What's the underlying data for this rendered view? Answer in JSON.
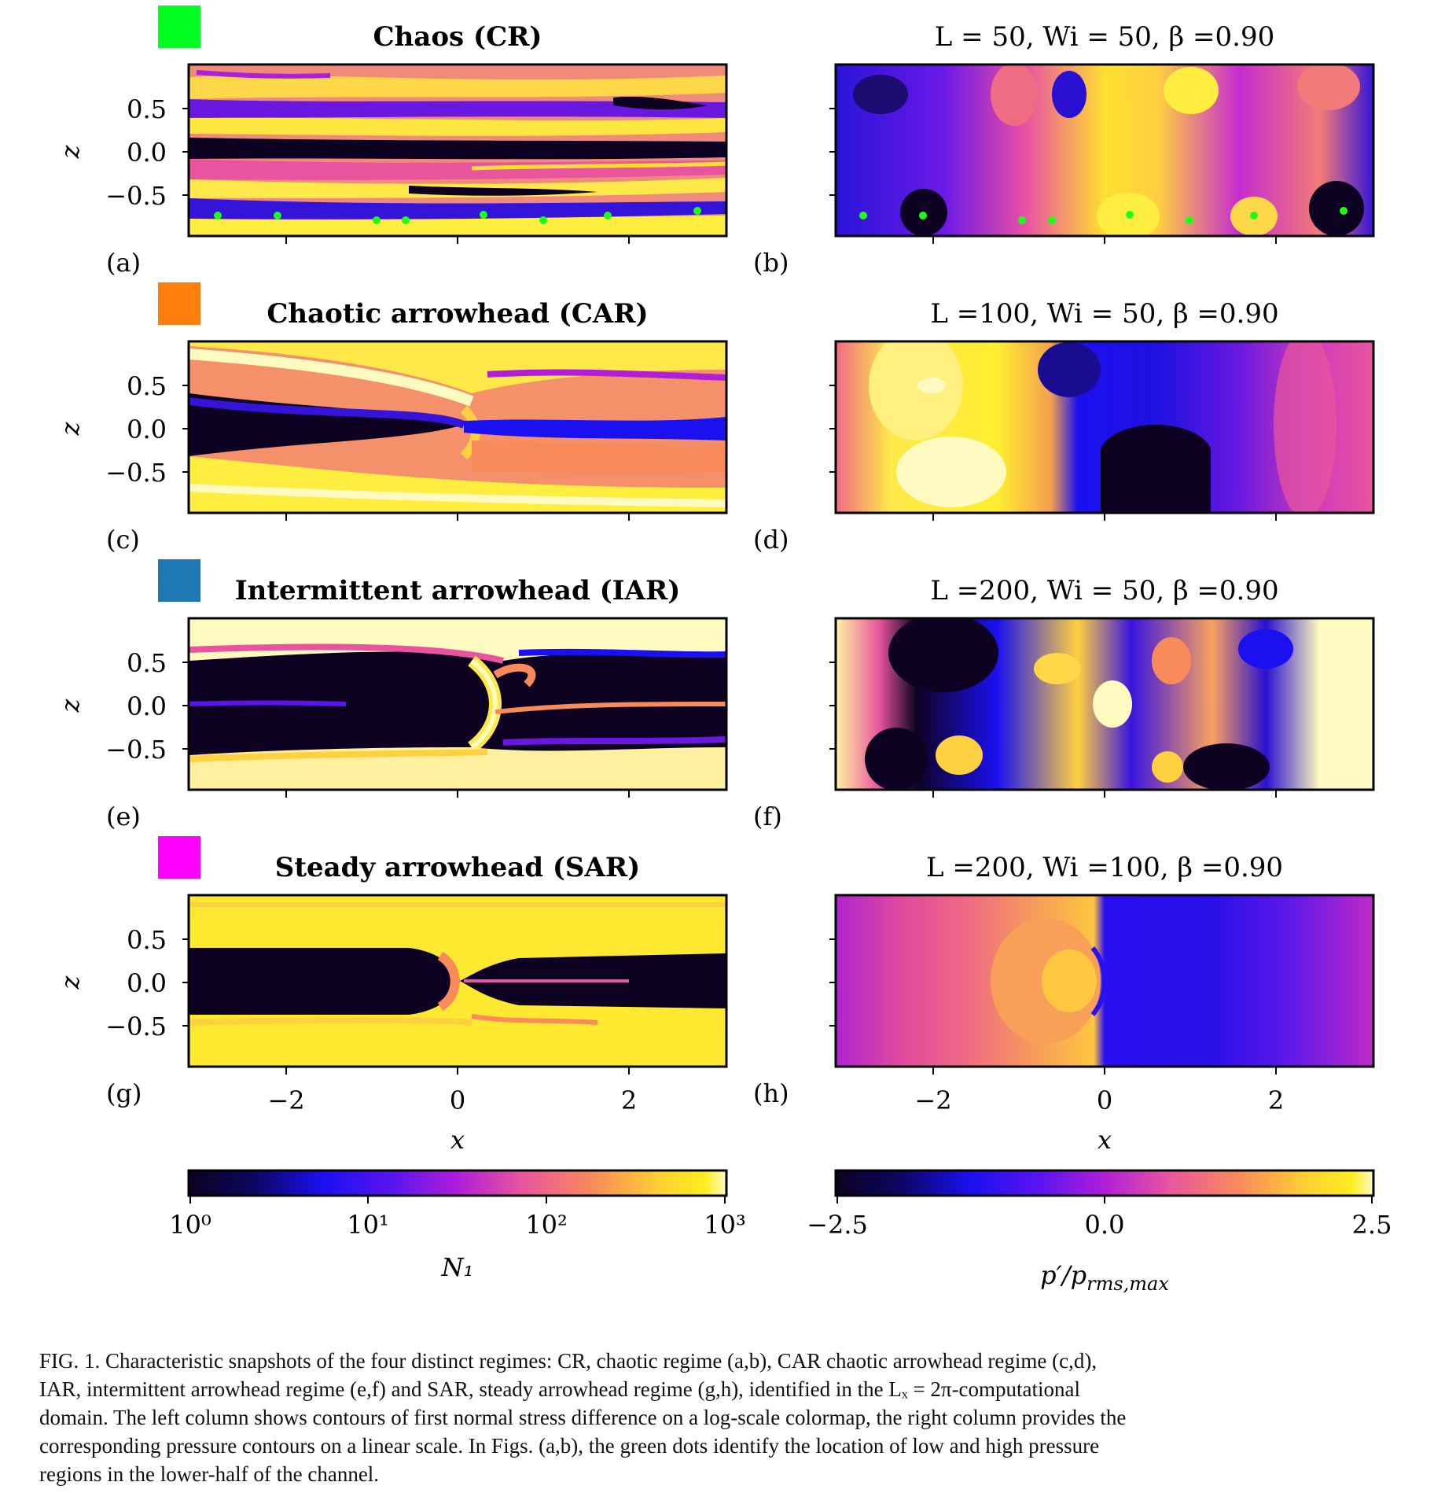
{
  "rows": [
    {
      "regime_title": "Chaos (CR)",
      "swatch_color": "#00ff1e",
      "param_label": "L = 50, Wi = 50, β =0.90",
      "left_label": "(a)",
      "right_label": "(b)"
    },
    {
      "regime_title": "Chaotic arrowhead (CAR)",
      "swatch_color": "#ff7f0e",
      "param_label": "L =100, Wi = 50, β =0.90",
      "left_label": "(c)",
      "right_label": "(d)"
    },
    {
      "regime_title": "Intermittent arrowhead (IAR)",
      "swatch_color": "#1f77b4",
      "param_label": "L =200, Wi = 50, β =0.90",
      "left_label": "(e)",
      "right_label": "(f)"
    },
    {
      "regime_title": "Steady arrowhead (SAR)",
      "swatch_color": "#ff00ff",
      "param_label": "L =200, Wi =100, β =0.90",
      "left_label": "(g)",
      "right_label": "(h)"
    }
  ],
  "axes": {
    "z_label": "z",
    "x_label": "x",
    "z_ticks": [
      "0.5",
      "0.0",
      "−0.5"
    ],
    "x_ticks": [
      "−2",
      "0",
      "2"
    ]
  },
  "colorbars": {
    "left": {
      "label": "N₁",
      "tick_labels": [
        "10⁰",
        "10¹",
        "10²",
        "10³"
      ]
    },
    "right": {
      "label": "p′/p",
      "label_sub": "rms,max",
      "tick_labels": [
        "−2.5",
        "0.0",
        "2.5"
      ]
    }
  },
  "caption": {
    "line1": "FIG. 1.   Characteristic snapshots of the four distinct regimes: CR, chaotic regime (a,b), CAR chaotic arrowhead regime (c,d),",
    "line2": "IAR, intermittent arrowhead regime (e,f) and SAR, steady arrowhead regime (g,h), identified in the Lₓ = 2π-computational",
    "line3": "domain. The left column shows contours of first normal stress difference on a log-scale colormap, the right column provides the",
    "line4": "corresponding pressure contours on a linear scale. In Figs. (a,b), the green dots identify the location of low and high pressure",
    "line5": "regions in the lower-half of the channel."
  },
  "colors": {
    "plasma_dark": "#0d0221",
    "plasma_blue": "#1a10f0",
    "plasma_violet": "#8a18e0",
    "plasma_pink": "#e8559e",
    "plasma_orange": "#f98a5a",
    "plasma_yellow": "#ffee20",
    "plasma_light": "#fffac0",
    "marker_green": "#1aff1a"
  }
}
